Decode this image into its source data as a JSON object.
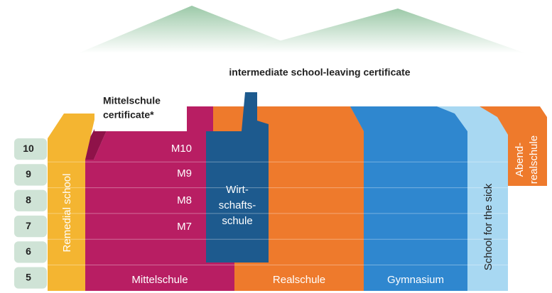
{
  "caption": "intermediate school-leaving certificate",
  "note": [
    "Mittelschule",
    "certificate*"
  ],
  "grades": [
    "10",
    "9",
    "8",
    "7",
    "6",
    "5"
  ],
  "mittelschule_levels": [
    "M10",
    "M9",
    "M8",
    "M7"
  ],
  "schools": {
    "remedial": "Remedial school",
    "mittelschule": "Mittelschule",
    "wirtschaftsschule": [
      "Wirt-",
      "schafts-",
      "schule"
    ],
    "realschule": "Realschule",
    "gymnasium": "Gymnasium",
    "sick": "School for the sick",
    "abendrealschule": [
      "Abend-",
      "realschule"
    ]
  }
}
